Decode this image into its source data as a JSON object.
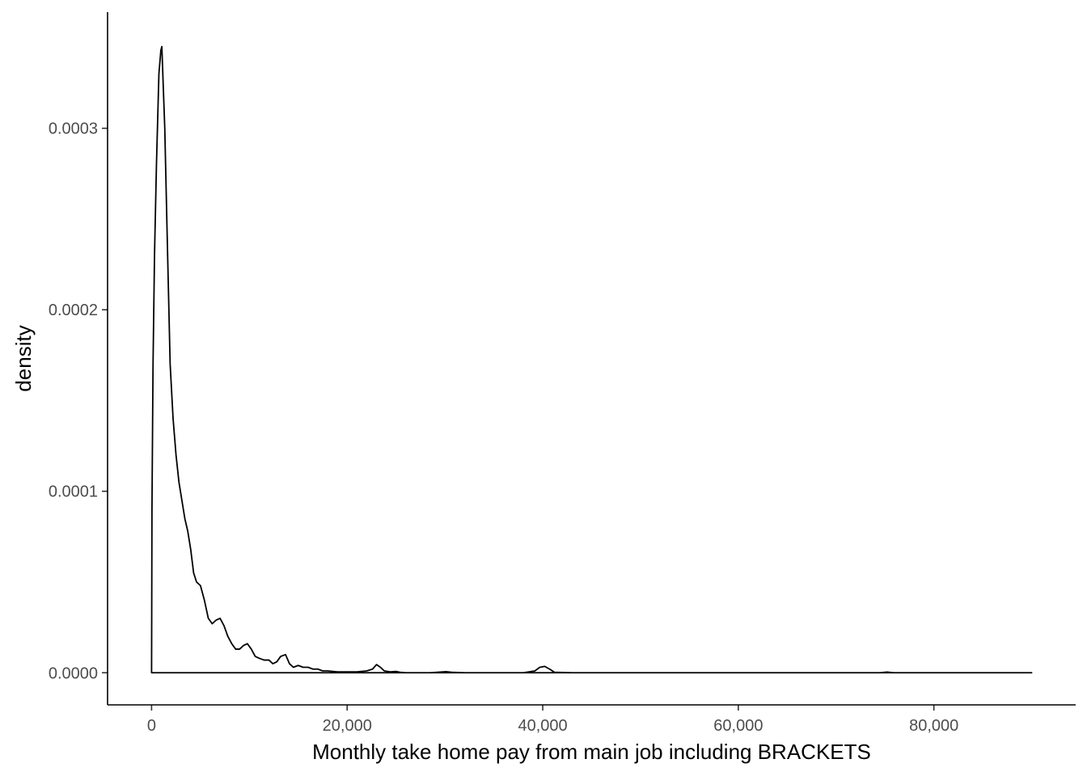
{
  "chart_data": {
    "type": "area",
    "title": "",
    "xlabel": "Monthly take home pay from main job including BRACKETS",
    "ylabel": "density",
    "xlim": [
      -4500,
      94500
    ],
    "ylim": [
      -1.77e-05,
      0.000364
    ],
    "x_ticks": [
      0,
      20000,
      40000,
      60000,
      80000
    ],
    "x_tick_labels": [
      "0",
      "20,000",
      "40,000",
      "60,000",
      "80,000"
    ],
    "y_ticks": [
      0,
      0.0001,
      0.0002,
      0.0003
    ],
    "y_tick_labels": [
      "0.0000",
      "0.0001",
      "0.0002",
      "0.0003"
    ],
    "grid": false,
    "line_color": "#000000",
    "series": [
      {
        "x": [
          0,
          40,
          150,
          300,
          500,
          750,
          950,
          1050,
          1150,
          1350,
          1600,
          1900,
          2200,
          2500,
          2800,
          3100,
          3400,
          3700,
          4000,
          4300,
          4600,
          5000,
          5400,
          5800,
          6200,
          6600,
          7000,
          7400,
          7800,
          8200,
          8600,
          9000,
          9400,
          9800,
          10200,
          10600,
          11000,
          11500,
          12000,
          12400,
          12800,
          13200,
          13700,
          14100,
          14500,
          15000,
          15500,
          16000,
          16500,
          17000,
          17500,
          18000,
          19000,
          20000,
          21000,
          22000,
          22600,
          23000,
          23400,
          23800,
          24400,
          25000,
          25400,
          26000,
          27000,
          28500,
          29500,
          30100,
          30700,
          32000,
          35000,
          38000,
          39200,
          39700,
          40200,
          40700,
          41200,
          43000,
          50000,
          60000,
          70000,
          74500,
          75200,
          75900,
          80000,
          85000,
          90000
        ],
        "y": [
          0.0,
          9e-05,
          0.00017,
          0.00023,
          0.00028,
          0.00033,
          0.000343,
          0.000345,
          0.00033,
          0.0003,
          0.00024,
          0.00017,
          0.00014,
          0.00012,
          0.000105,
          9.5e-05,
          8.5e-05,
          7.8e-05,
          6.8e-05,
          5.5e-05,
          5e-05,
          4.8e-05,
          4e-05,
          3e-05,
          2.7e-05,
          2.9e-05,
          3e-05,
          2.6e-05,
          2e-05,
          1.6e-05,
          1.3e-05,
          1.3e-05,
          1.5e-05,
          1.6e-05,
          1.3e-05,
          9e-06,
          8e-06,
          7e-06,
          7e-06,
          5e-06,
          6e-06,
          9e-06,
          1e-05,
          5e-06,
          3e-06,
          4e-06,
          3e-06,
          3e-06,
          2e-06,
          2e-06,
          1e-06,
          1e-06,
          5e-07,
          5e-07,
          5e-07,
          1e-06,
          2e-06,
          4.5e-06,
          3e-06,
          1e-06,
          5e-07,
          7e-07,
          3e-07,
          0.0,
          0.0,
          0.0,
          4e-07,
          6e-07,
          3e-07,
          0.0,
          0.0,
          0.0,
          1e-06,
          3e-06,
          3.5e-06,
          2e-06,
          3e-07,
          0.0,
          0.0,
          0.0,
          0.0,
          0.0,
          4e-07,
          0.0,
          0.0,
          0.0,
          0.0
        ]
      }
    ]
  }
}
